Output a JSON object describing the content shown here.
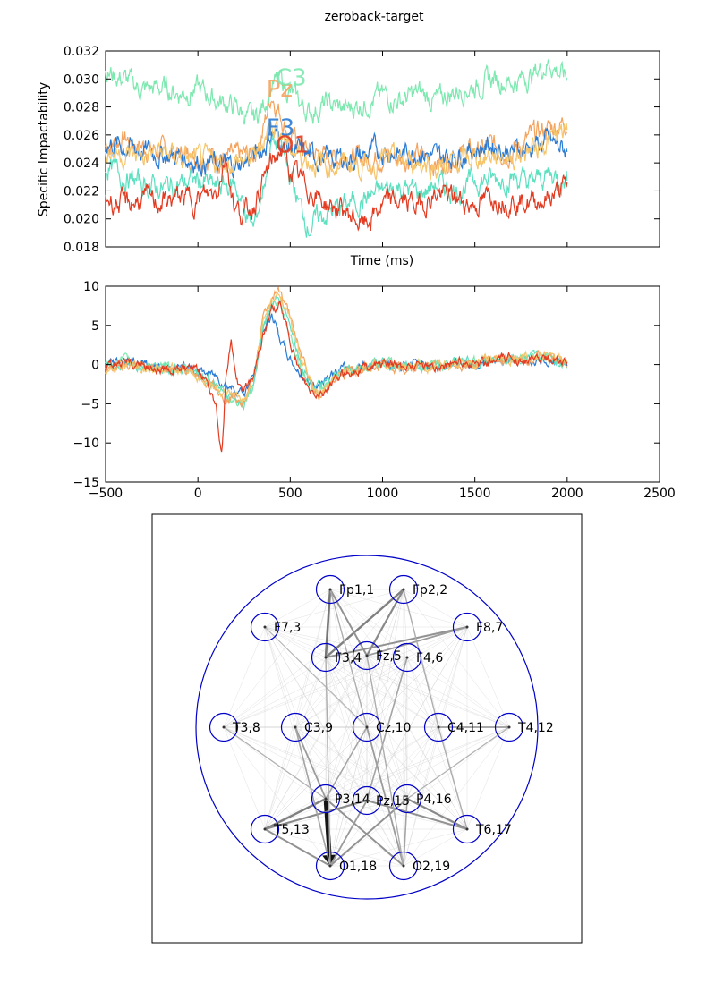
{
  "chart_data": [
    {
      "type": "line",
      "title": "zeroback-target",
      "xlabel": "Time (ms)",
      "ylabel": "Specific Impactability",
      "xlim": [
        -500,
        2500
      ],
      "ylim": [
        0.018,
        0.032
      ],
      "yticks": [
        "0.018",
        "0.020",
        "0.022",
        "0.024",
        "0.026",
        "0.028",
        "0.030",
        "0.032"
      ],
      "grid": false,
      "series": [
        {
          "name": "Pz",
          "color": "#f4a35e",
          "x": [
            -500,
            -400,
            -300,
            -200,
            -100,
            0,
            100,
            200,
            300,
            350,
            400,
            450,
            500,
            600,
            700,
            800,
            900,
            1000,
            1100,
            1200,
            1300,
            1400,
            1500,
            1600,
            1700,
            1800,
            1900,
            2000
          ],
          "y": [
            0.0252,
            0.0258,
            0.0252,
            0.0248,
            0.0246,
            0.0245,
            0.0245,
            0.0243,
            0.0246,
            0.0262,
            0.029,
            0.0275,
            0.0258,
            0.0248,
            0.0244,
            0.0246,
            0.0242,
            0.0246,
            0.0243,
            0.0245,
            0.024,
            0.0245,
            0.0248,
            0.0252,
            0.0248,
            0.0258,
            0.0265,
            0.027
          ]
        },
        {
          "name": "C3",
          "color": "#7de8b0",
          "x": [
            -500,
            -400,
            -300,
            -200,
            -100,
            0,
            100,
            200,
            300,
            350,
            400,
            450,
            500,
            600,
            700,
            800,
            900,
            1000,
            1100,
            1200,
            1300,
            1400,
            1500,
            1600,
            1700,
            1800,
            1900,
            2000
          ],
          "y": [
            0.0305,
            0.03,
            0.0292,
            0.0294,
            0.029,
            0.0293,
            0.0285,
            0.028,
            0.027,
            0.028,
            0.0296,
            0.0298,
            0.029,
            0.0276,
            0.0282,
            0.0278,
            0.0283,
            0.0288,
            0.0285,
            0.029,
            0.0284,
            0.0292,
            0.0295,
            0.03,
            0.0298,
            0.0302,
            0.0312,
            0.03
          ]
        },
        {
          "name": "F3",
          "color": "#2a7bd4",
          "x": [
            -500,
            -400,
            -300,
            -200,
            -100,
            0,
            100,
            200,
            300,
            350,
            400,
            450,
            500,
            600,
            700,
            800,
            900,
            1000,
            1100,
            1200,
            1300,
            1400,
            1500,
            1600,
            1700,
            1800,
            1900,
            2000
          ],
          "y": [
            0.0255,
            0.0252,
            0.0249,
            0.0246,
            0.0245,
            0.0242,
            0.0238,
            0.0238,
            0.0244,
            0.025,
            0.0262,
            0.0256,
            0.025,
            0.0245,
            0.0243,
            0.0243,
            0.0245,
            0.025,
            0.0246,
            0.0249,
            0.0243,
            0.0247,
            0.025,
            0.0253,
            0.0248,
            0.0251,
            0.0255,
            0.0248
          ]
        },
        {
          "name": "",
          "color": "#5de0c0",
          "x": [
            -500,
            -400,
            -300,
            -200,
            -100,
            0,
            100,
            200,
            300,
            350,
            400,
            450,
            500,
            550,
            600,
            700,
            800,
            900,
            1000,
            1100,
            1200,
            1300,
            1400,
            1500,
            1600,
            1700,
            1800,
            1900,
            2000
          ],
          "y": [
            0.0238,
            0.023,
            0.0225,
            0.0222,
            0.0225,
            0.0228,
            0.0222,
            0.0225,
            0.0192,
            0.022,
            0.0255,
            0.025,
            0.023,
            0.021,
            0.0195,
            0.0204,
            0.021,
            0.0214,
            0.022,
            0.0223,
            0.0218,
            0.0225,
            0.022,
            0.0228,
            0.0228,
            0.023,
            0.0225,
            0.0232,
            0.0228
          ]
        },
        {
          "name": "",
          "color": "#f6c46a",
          "x": [
            -500,
            -400,
            -300,
            -200,
            -100,
            0,
            100,
            200,
            300,
            350,
            400,
            450,
            500,
            600,
            700,
            800,
            900,
            1000,
            1100,
            1200,
            1300,
            1400,
            1500,
            1600,
            1700,
            1800,
            1900,
            2000
          ],
          "y": [
            0.025,
            0.0246,
            0.0245,
            0.0248,
            0.0244,
            0.0242,
            0.024,
            0.0241,
            0.0243,
            0.0255,
            0.027,
            0.0262,
            0.025,
            0.0242,
            0.0238,
            0.024,
            0.0238,
            0.0242,
            0.024,
            0.0241,
            0.0237,
            0.024,
            0.0243,
            0.0246,
            0.0244,
            0.025,
            0.0256,
            0.0262
          ]
        },
        {
          "name": "O1",
          "color": "#e23b21",
          "x": [
            -500,
            -400,
            -300,
            -200,
            -100,
            0,
            100,
            150,
            200,
            250,
            300,
            350,
            400,
            450,
            500,
            600,
            700,
            800,
            900,
            1000,
            1100,
            1200,
            1300,
            1400,
            1500,
            1600,
            1700,
            1800,
            1900,
            2000
          ],
          "y": [
            0.0215,
            0.021,
            0.0214,
            0.0212,
            0.0215,
            0.0214,
            0.022,
            0.0246,
            0.0208,
            0.0202,
            0.021,
            0.0226,
            0.024,
            0.025,
            0.0234,
            0.0222,
            0.021,
            0.0205,
            0.0195,
            0.021,
            0.0213,
            0.021,
            0.0218,
            0.0214,
            0.021,
            0.0216,
            0.0214,
            0.0212,
            0.0215,
            0.0223
          ]
        }
      ]
    },
    {
      "type": "line",
      "title": "",
      "xlabel": "",
      "ylabel": "",
      "xlim": [
        -500,
        2500
      ],
      "ylim": [
        -15,
        10
      ],
      "xticks": [
        "−500",
        "0",
        "500",
        "1000",
        "1500",
        "2000",
        "2500"
      ],
      "yticks": [
        "−15",
        "−10",
        "−5",
        "0",
        "5",
        "10"
      ],
      "grid": false,
      "series": [
        {
          "name": "",
          "color": "#2a7bd4",
          "x": [
            -500,
            -400,
            -300,
            -200,
            -100,
            0,
            100,
            150,
            200,
            250,
            300,
            350,
            400,
            450,
            500,
            550,
            600,
            650,
            700,
            800,
            900,
            1000,
            1100,
            1200,
            1300,
            1400,
            1500,
            1600,
            1700,
            1800,
            1900,
            2000
          ],
          "y": [
            0,
            0.6,
            0.2,
            -0.5,
            -0.3,
            -0.8,
            -1.5,
            -2.5,
            -3.0,
            -3.6,
            -1.5,
            4.0,
            6.5,
            3.0,
            0.5,
            -1.0,
            -2.5,
            -2.5,
            -1.5,
            -0.5,
            0,
            0.3,
            -0.2,
            0.2,
            -0.3,
            0.3,
            0,
            0.2,
            0.5,
            0.5,
            0.6,
            0.2
          ]
        },
        {
          "name": "",
          "color": "#7de8b0",
          "x": [
            -500,
            -400,
            -300,
            -200,
            -100,
            0,
            100,
            150,
            200,
            250,
            300,
            350,
            400,
            450,
            500,
            550,
            600,
            650,
            700,
            800,
            900,
            1000,
            1100,
            1200,
            1300,
            1400,
            1500,
            1600,
            1700,
            1800,
            1900,
            2000
          ],
          "y": [
            -0.3,
            0.5,
            0,
            -0.6,
            -0.4,
            -1.2,
            -2.8,
            -4.0,
            -4.8,
            -5.5,
            -3.0,
            5.0,
            8.0,
            7.5,
            4.0,
            0,
            -2.5,
            -3.5,
            -2.5,
            -0.8,
            -0.2,
            0.4,
            -0.3,
            0.1,
            -0.2,
            0.5,
            0.3,
            0.6,
            0.6,
            0.8,
            1.0,
            0.3
          ]
        },
        {
          "name": "",
          "color": "#5de0c0",
          "x": [
            -500,
            -400,
            -300,
            -200,
            -100,
            0,
            100,
            150,
            200,
            250,
            300,
            350,
            400,
            450,
            500,
            550,
            600,
            650,
            700,
            800,
            900,
            1000,
            1100,
            1200,
            1300,
            1400,
            1500,
            1600,
            1700,
            1800,
            1900,
            2000
          ],
          "y": [
            0,
            0.4,
            -0.2,
            -0.5,
            -0.5,
            -1.0,
            -2.5,
            -3.5,
            -4.5,
            -5.2,
            -2.5,
            4.5,
            7.5,
            8.5,
            5.0,
            1.0,
            -2.0,
            -3.0,
            -2.5,
            -0.8,
            -0.3,
            0.2,
            -0.4,
            0,
            -0.3,
            0.4,
            0.1,
            0.5,
            0.6,
            0.7,
            0.8,
            0.2
          ]
        },
        {
          "name": "",
          "color": "#f4a35e",
          "x": [
            -500,
            -400,
            -300,
            -200,
            -100,
            0,
            100,
            150,
            200,
            250,
            300,
            350,
            400,
            450,
            500,
            550,
            600,
            650,
            700,
            800,
            900,
            1000,
            1100,
            1200,
            1300,
            1400,
            1500,
            1600,
            1700,
            1800,
            1900,
            2000
          ],
          "y": [
            -0.5,
            0.2,
            -0.2,
            -0.8,
            -0.8,
            -1.5,
            -3.2,
            -4.2,
            -3.8,
            -4.5,
            -2.0,
            5.5,
            8.5,
            9.5,
            6.0,
            2.0,
            -1.5,
            -4.0,
            -3.0,
            -1.0,
            -0.5,
            0.1,
            -0.5,
            0,
            -0.4,
            0.2,
            0,
            0.6,
            0.5,
            0.9,
            1.0,
            0.3
          ]
        },
        {
          "name": "",
          "color": "#f6c46a",
          "x": [
            -500,
            -400,
            -300,
            -200,
            -100,
            0,
            100,
            150,
            200,
            250,
            300,
            350,
            400,
            450,
            500,
            550,
            600,
            650,
            700,
            800,
            900,
            1000,
            1100,
            1200,
            1300,
            1400,
            1500,
            1600,
            1700,
            1800,
            1900,
            2000
          ],
          "y": [
            -0.6,
            0.1,
            -0.4,
            -0.9,
            -0.7,
            -1.4,
            -3.0,
            -4.0,
            -4.2,
            -4.8,
            -2.2,
            5.2,
            8.0,
            9.0,
            5.5,
            1.5,
            -1.8,
            -4.2,
            -2.8,
            -0.9,
            -0.4,
            0.1,
            -0.4,
            0.1,
            -0.4,
            0.3,
            0.1,
            0.7,
            0.6,
            1.0,
            0.9,
            0.4
          ]
        },
        {
          "name": "",
          "color": "#e23b21",
          "x": [
            -500,
            -400,
            -300,
            -200,
            -100,
            0,
            50,
            100,
            130,
            150,
            180,
            200,
            230,
            260,
            300,
            350,
            400,
            450,
            500,
            550,
            600,
            650,
            700,
            800,
            900,
            1000,
            1100,
            1200,
            1300,
            1400,
            1500,
            1600,
            1700,
            1800,
            1900,
            2000
          ],
          "y": [
            -0.5,
            0.4,
            0,
            -0.8,
            -0.5,
            -1.0,
            -2.0,
            -5.0,
            -11.8,
            -2.0,
            3.0,
            -1.0,
            -3.5,
            -3.0,
            -1.0,
            3.5,
            7.0,
            7.5,
            3.0,
            -1.0,
            -3.5,
            -4.0,
            -3.0,
            -1.0,
            -0.3,
            0.2,
            -0.3,
            0.2,
            -0.3,
            0.4,
            0.2,
            0.4,
            0.8,
            0.6,
            0.8,
            0.2
          ]
        }
      ]
    },
    {
      "type": "network",
      "title": "",
      "nodes": [
        {
          "label": "Fp1,1",
          "id": 1
        },
        {
          "label": "Fp2,2",
          "id": 2
        },
        {
          "label": "F7,3",
          "id": 3
        },
        {
          "label": "F3,4",
          "id": 4
        },
        {
          "label": "Fz,5",
          "id": 5
        },
        {
          "label": "F4,6",
          "id": 6
        },
        {
          "label": "F8,7",
          "id": 7
        },
        {
          "label": "T3,8",
          "id": 8
        },
        {
          "label": "C3,9",
          "id": 9
        },
        {
          "label": "Cz,10",
          "id": 10
        },
        {
          "label": "C4,11",
          "id": 11
        },
        {
          "label": "T4,12",
          "id": 12
        },
        {
          "label": "T5,13",
          "id": 13
        },
        {
          "label": "P3,14",
          "id": 14
        },
        {
          "label": "Pz,15",
          "id": 15
        },
        {
          "label": "P4,16",
          "id": 16
        },
        {
          "label": "T6,17",
          "id": 17
        },
        {
          "label": "O1,18",
          "id": 18
        },
        {
          "label": "O2,19",
          "id": 19
        }
      ],
      "edges": [
        {
          "from": 14,
          "to": 18,
          "weight": 1.0
        },
        {
          "from": 1,
          "to": 4,
          "weight": 0.45
        },
        {
          "from": 2,
          "to": 4,
          "weight": 0.4
        },
        {
          "from": 2,
          "to": 5,
          "weight": 0.35
        },
        {
          "from": 1,
          "to": 5,
          "weight": 0.3
        },
        {
          "from": 7,
          "to": 4,
          "weight": 0.3
        },
        {
          "from": 7,
          "to": 5,
          "weight": 0.25
        },
        {
          "from": 13,
          "to": 14,
          "weight": 0.4
        },
        {
          "from": 13,
          "to": 15,
          "weight": 0.35
        },
        {
          "from": 13,
          "to": 18,
          "weight": 0.3
        },
        {
          "from": 16,
          "to": 17,
          "weight": 0.35
        },
        {
          "from": 15,
          "to": 17,
          "weight": 0.3
        },
        {
          "from": 14,
          "to": 19,
          "weight": 0.3
        },
        {
          "from": 16,
          "to": 18,
          "weight": 0.3
        },
        {
          "from": 9,
          "to": 14,
          "weight": 0.25
        },
        {
          "from": 10,
          "to": 19,
          "weight": 0.25
        },
        {
          "from": 11,
          "to": 12,
          "weight": 0.25
        },
        {
          "from": 9,
          "to": 18,
          "weight": 0.2
        },
        {
          "from": 10,
          "to": 14,
          "weight": 0.2
        },
        {
          "from": 6,
          "to": 15,
          "weight": 0.2
        },
        {
          "from": 1,
          "to": 10,
          "weight": 0.15
        },
        {
          "from": 2,
          "to": 11,
          "weight": 0.15
        },
        {
          "from": 3,
          "to": 10,
          "weight": 0.1
        },
        {
          "from": 8,
          "to": 14,
          "weight": 0.12
        },
        {
          "from": 12,
          "to": 16,
          "weight": 0.12
        },
        {
          "from": 5,
          "to": 19,
          "weight": 0.15
        },
        {
          "from": 4,
          "to": 18,
          "weight": 0.15
        },
        {
          "from": 15,
          "to": 18,
          "weight": 0.25
        },
        {
          "from": 16,
          "to": 19,
          "weight": 0.2
        },
        {
          "from": 11,
          "to": 17,
          "weight": 0.15
        }
      ]
    }
  ]
}
